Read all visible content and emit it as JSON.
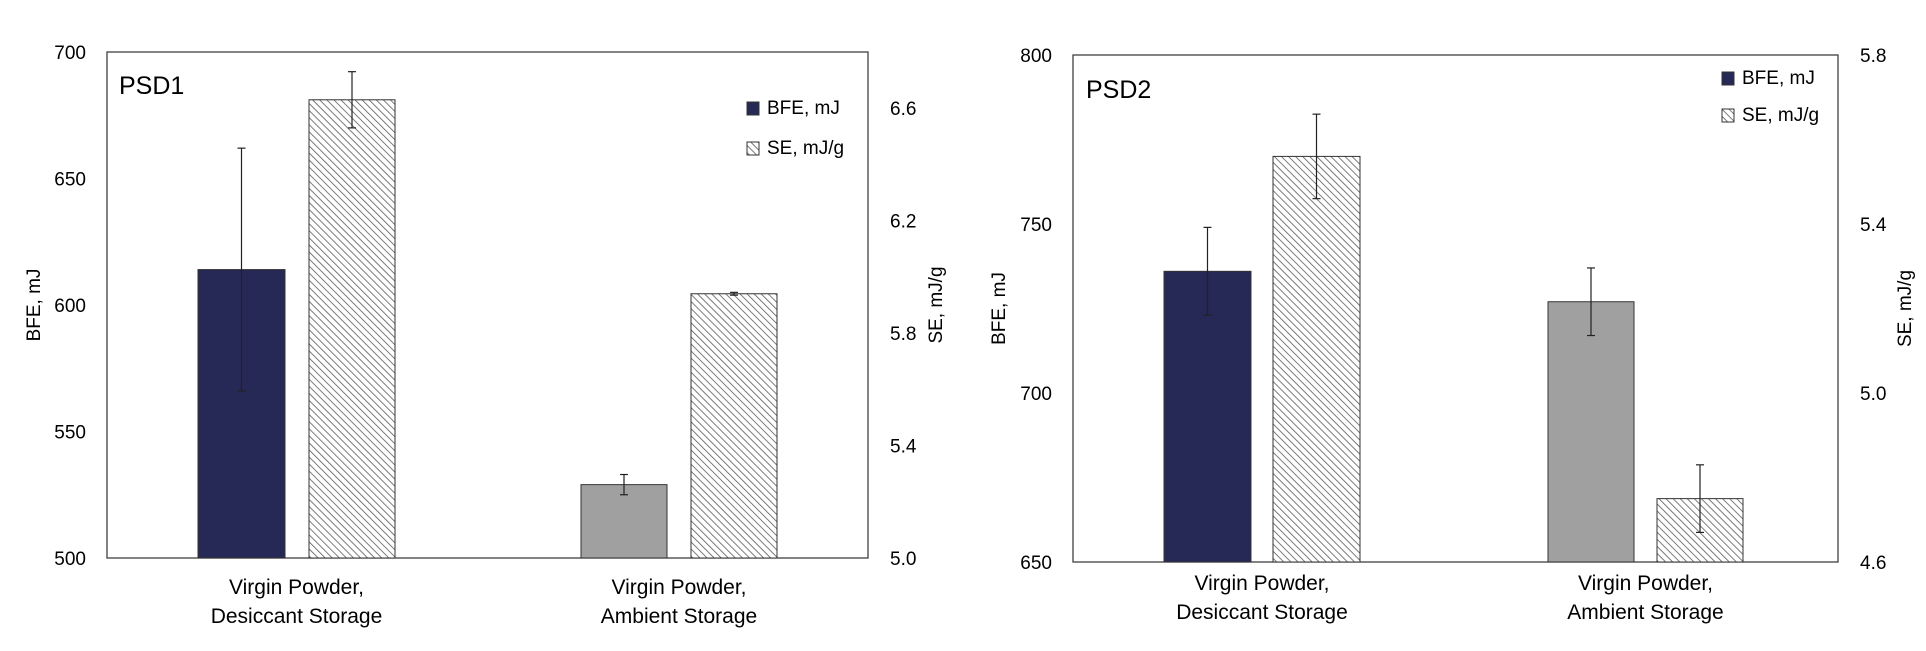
{
  "colors": {
    "desiccant_bfe": "#262855",
    "ambient_bfe": "#a0a0a0",
    "se_hatch": "#555555",
    "frame": "#404040"
  },
  "chart_data": [
    {
      "type": "bar",
      "title": "PSD1",
      "categories": [
        [
          "Virgin Powder,",
          "Desiccant Storage"
        ],
        [
          "Virgin Powder,",
          "Ambient Storage"
        ]
      ],
      "ylabel": "BFE, mJ",
      "y2label": "SE, mJ/g",
      "ylim": [
        500,
        700
      ],
      "yticks": [
        "500",
        "550",
        "600",
        "650",
        "700"
      ],
      "y2lim": [
        5.0,
        6.8
      ],
      "y2ticks": [
        "5.0",
        "5.4",
        "5.8",
        "6.2",
        "6.6"
      ],
      "legend": [
        "BFE, mJ",
        "SE, mJ/g"
      ],
      "legend_position": "top-right",
      "series": [
        {
          "name": "BFE, mJ",
          "axis": "left",
          "values": [
            614,
            529
          ],
          "errors": [
            48,
            4
          ]
        },
        {
          "name": "SE, mJ/g",
          "axis": "right",
          "values": [
            6.63,
            5.94
          ],
          "errors": [
            0.1,
            0.005
          ]
        }
      ]
    },
    {
      "type": "bar",
      "title": "PSD2",
      "categories": [
        [
          "Virgin Powder,",
          "Desiccant Storage"
        ],
        [
          "Virgin Powder,",
          "Ambient Storage"
        ]
      ],
      "ylabel": "BFE, mJ",
      "y2label": "SE, mJ/g",
      "ylim": [
        650,
        800
      ],
      "yticks": [
        "650",
        "700",
        "750",
        "800"
      ],
      "y2lim": [
        4.6,
        5.8
      ],
      "y2ticks": [
        "4.6",
        "5.0",
        "5.4",
        "5.8"
      ],
      "legend": [
        "BFE, mJ",
        "SE, mJ/g"
      ],
      "legend_position": "top-right",
      "series": [
        {
          "name": "BFE, mJ",
          "axis": "left",
          "values": [
            736,
            727
          ],
          "errors": [
            13,
            10
          ]
        },
        {
          "name": "SE, mJ/g",
          "axis": "right",
          "values": [
            5.56,
            4.75
          ],
          "errors": [
            0.1,
            0.08
          ]
        }
      ]
    }
  ]
}
